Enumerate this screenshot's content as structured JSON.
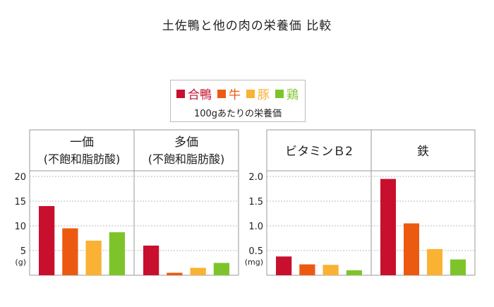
{
  "title": "土佐鴨と他の肉の栄養価 比較",
  "legend": {
    "items": [
      {
        "label": "合鴨",
        "color": "#c8102e"
      },
      {
        "label": "牛",
        "color": "#ec5a12"
      },
      {
        "label": "豚",
        "color": "#f9b233"
      },
      {
        "label": "鶏",
        "color": "#7dc42a"
      }
    ],
    "note": "100gあたりの栄養価"
  },
  "chart_data": [
    {
      "type": "bar",
      "ylim": [
        0,
        20
      ],
      "yticks": [
        "20",
        "15",
        "10",
        "5"
      ],
      "yunit": "(g)",
      "grid": true,
      "groups": [
        {
          "header_line1": "一価",
          "header_line2": "(不飽和脂肪酸)",
          "values": [
            14.0,
            9.5,
            7.0,
            8.7
          ]
        },
        {
          "header_line1": "多価",
          "header_line2": "(不飽和脂肪酸)",
          "values": [
            6.0,
            0.5,
            1.5,
            2.5
          ]
        }
      ],
      "series": [
        "合鴨",
        "牛",
        "豚",
        "鶏"
      ]
    },
    {
      "type": "bar",
      "ylim": [
        0,
        2.0
      ],
      "yticks": [
        "2.0",
        "1.5",
        "1.0",
        "0.5"
      ],
      "yunit": "(mg)",
      "grid": true,
      "groups": [
        {
          "header_line1": "ビタミンＢ2",
          "header_line2": "",
          "values": [
            0.38,
            0.22,
            0.21,
            0.1
          ]
        },
        {
          "header_line1": "鉄",
          "header_line2": "",
          "values": [
            1.95,
            1.05,
            0.53,
            0.32
          ]
        }
      ],
      "series": [
        "合鴨",
        "牛",
        "豚",
        "鶏"
      ]
    }
  ]
}
